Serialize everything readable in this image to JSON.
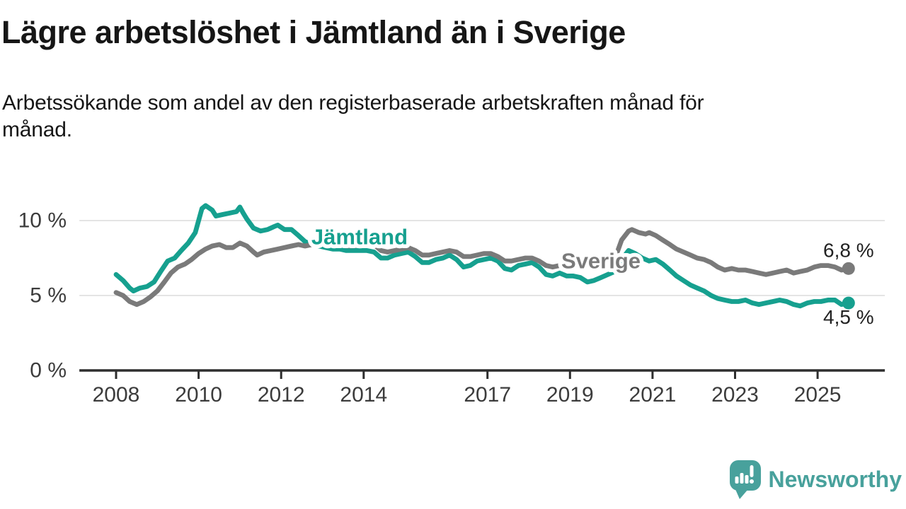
{
  "header": {
    "title": "Lägre arbetslöshet i Jämtland än i Sverige",
    "subtitle": "Arbetssökande som andel av den registerbaserade arbetskraften månad för\nmånad."
  },
  "footer": {
    "brand": "Newsworthy",
    "logo_icon": "speech-bubble-bar-chart-icon",
    "logo_color": "#48a19c"
  },
  "colors": {
    "jamtland_line": "#16a08f",
    "sverige_line": "#7a7a7a",
    "axis": "#2e2e2e",
    "axis_text": "#3c3c3c",
    "gridline": "#dcdcdc",
    "value_label_text": "#222222",
    "background": "#ffffff"
  },
  "chart_data": {
    "type": "line",
    "title": "Lägre arbetslöshet i Jämtland än i Sverige",
    "subtitle": "Arbetssökande som andel av den registerbaserade arbetskraften månad för månad.",
    "unit": "%",
    "grid": "horizontal-only",
    "xlim": [
      2007.11,
      2026.63
    ],
    "ylim": [
      0,
      11.6
    ],
    "x_ticks": [
      2008,
      2010,
      2012,
      2014,
      2017,
      2019,
      2021,
      2023,
      2025
    ],
    "y_ticks": [
      0,
      5,
      10
    ],
    "y_tick_labels": [
      "0 %",
      "5 %",
      "10 %"
    ],
    "legend": "inline-labels-on-lines",
    "annotations": [
      {
        "text": "Jämtland",
        "x": 2013.9,
        "y": 8.92,
        "color": "#16a08f"
      },
      {
        "text": "Sverige",
        "x": 2019.75,
        "y": 7.31,
        "color": "#7a7a7a"
      }
    ],
    "series": [
      {
        "name": "Jämtland",
        "color": "#16a08f",
        "end_label": "4,5 %",
        "end_label_position": "below",
        "points": [
          [
            2008.0,
            6.4
          ],
          [
            2008.17,
            6.0
          ],
          [
            2008.33,
            5.5
          ],
          [
            2008.42,
            5.3
          ],
          [
            2008.58,
            5.5
          ],
          [
            2008.75,
            5.6
          ],
          [
            2008.92,
            5.9
          ],
          [
            2009.08,
            6.6
          ],
          [
            2009.25,
            7.3
          ],
          [
            2009.42,
            7.5
          ],
          [
            2009.58,
            8.0
          ],
          [
            2009.75,
            8.5
          ],
          [
            2009.92,
            9.2
          ],
          [
            2010.0,
            10.0
          ],
          [
            2010.08,
            10.8
          ],
          [
            2010.17,
            11.0
          ],
          [
            2010.33,
            10.7
          ],
          [
            2010.42,
            10.3
          ],
          [
            2010.58,
            10.4
          ],
          [
            2010.75,
            10.5
          ],
          [
            2010.92,
            10.6
          ],
          [
            2011.0,
            10.9
          ],
          [
            2011.08,
            10.5
          ],
          [
            2011.17,
            10.1
          ],
          [
            2011.33,
            9.5
          ],
          [
            2011.5,
            9.3
          ],
          [
            2011.67,
            9.4
          ],
          [
            2011.83,
            9.6
          ],
          [
            2011.92,
            9.7
          ],
          [
            2012.08,
            9.4
          ],
          [
            2012.25,
            9.4
          ],
          [
            2012.42,
            9.0
          ],
          [
            2012.58,
            8.6
          ],
          [
            2012.75,
            8.4
          ],
          [
            2012.92,
            8.3
          ],
          [
            2013.08,
            8.2
          ],
          [
            2013.25,
            8.1
          ],
          [
            2013.42,
            8.1
          ],
          [
            2013.58,
            8.0
          ],
          [
            2013.75,
            8.0
          ],
          [
            2013.92,
            8.0
          ],
          [
            2014.08,
            8.0
          ],
          [
            2014.25,
            7.9
          ],
          [
            2014.42,
            7.5
          ],
          [
            2014.58,
            7.5
          ],
          [
            2014.75,
            7.7
          ],
          [
            2014.92,
            7.8
          ],
          [
            2015.08,
            7.9
          ],
          [
            2015.25,
            7.6
          ],
          [
            2015.42,
            7.2
          ],
          [
            2015.58,
            7.2
          ],
          [
            2015.75,
            7.4
          ],
          [
            2015.92,
            7.5
          ],
          [
            2016.08,
            7.7
          ],
          [
            2016.25,
            7.4
          ],
          [
            2016.42,
            6.9
          ],
          [
            2016.58,
            7.0
          ],
          [
            2016.75,
            7.3
          ],
          [
            2016.92,
            7.4
          ],
          [
            2017.08,
            7.5
          ],
          [
            2017.25,
            7.3
          ],
          [
            2017.42,
            6.8
          ],
          [
            2017.58,
            6.7
          ],
          [
            2017.75,
            7.0
          ],
          [
            2017.92,
            7.1
          ],
          [
            2018.08,
            7.2
          ],
          [
            2018.25,
            6.9
          ],
          [
            2018.42,
            6.4
          ],
          [
            2018.58,
            6.3
          ],
          [
            2018.75,
            6.5
          ],
          [
            2018.92,
            6.3
          ],
          [
            2019.08,
            6.3
          ],
          [
            2019.25,
            6.2
          ],
          [
            2019.42,
            5.9
          ],
          [
            2019.58,
            6.0
          ],
          [
            2019.75,
            6.2
          ],
          [
            2019.92,
            6.4
          ],
          [
            2020.08,
            6.6
          ],
          [
            2020.25,
            7.4
          ],
          [
            2020.42,
            8.0
          ],
          [
            2020.58,
            7.8
          ],
          [
            2020.75,
            7.5
          ],
          [
            2020.92,
            7.3
          ],
          [
            2021.08,
            7.4
          ],
          [
            2021.25,
            7.1
          ],
          [
            2021.42,
            6.7
          ],
          [
            2021.58,
            6.3
          ],
          [
            2021.75,
            6.0
          ],
          [
            2021.92,
            5.7
          ],
          [
            2022.08,
            5.5
          ],
          [
            2022.25,
            5.3
          ],
          [
            2022.42,
            5.0
          ],
          [
            2022.58,
            4.8
          ],
          [
            2022.75,
            4.7
          ],
          [
            2022.92,
            4.6
          ],
          [
            2023.08,
            4.6
          ],
          [
            2023.25,
            4.7
          ],
          [
            2023.42,
            4.5
          ],
          [
            2023.58,
            4.4
          ],
          [
            2023.75,
            4.5
          ],
          [
            2023.92,
            4.6
          ],
          [
            2024.08,
            4.7
          ],
          [
            2024.25,
            4.6
          ],
          [
            2024.42,
            4.4
          ],
          [
            2024.58,
            4.3
          ],
          [
            2024.75,
            4.5
          ],
          [
            2024.92,
            4.6
          ],
          [
            2025.08,
            4.6
          ],
          [
            2025.25,
            4.7
          ],
          [
            2025.42,
            4.7
          ],
          [
            2025.58,
            4.4
          ],
          [
            2025.75,
            4.5
          ]
        ]
      },
      {
        "name": "Sverige",
        "color": "#7a7a7a",
        "end_label": "6,8 %",
        "end_label_position": "above",
        "points": [
          [
            2008.0,
            5.2
          ],
          [
            2008.17,
            5.0
          ],
          [
            2008.33,
            4.6
          ],
          [
            2008.5,
            4.4
          ],
          [
            2008.67,
            4.6
          ],
          [
            2008.83,
            4.9
          ],
          [
            2009.0,
            5.3
          ],
          [
            2009.17,
            5.9
          ],
          [
            2009.33,
            6.5
          ],
          [
            2009.5,
            6.9
          ],
          [
            2009.67,
            7.1
          ],
          [
            2009.83,
            7.4
          ],
          [
            2010.0,
            7.8
          ],
          [
            2010.17,
            8.1
          ],
          [
            2010.33,
            8.3
          ],
          [
            2010.5,
            8.4
          ],
          [
            2010.67,
            8.2
          ],
          [
            2010.83,
            8.2
          ],
          [
            2011.0,
            8.5
          ],
          [
            2011.17,
            8.3
          ],
          [
            2011.33,
            7.9
          ],
          [
            2011.42,
            7.7
          ],
          [
            2011.58,
            7.9
          ],
          [
            2011.75,
            8.0
          ],
          [
            2011.92,
            8.1
          ],
          [
            2012.08,
            8.2
          ],
          [
            2012.25,
            8.3
          ],
          [
            2012.42,
            8.4
          ],
          [
            2012.58,
            8.3
          ],
          [
            2012.75,
            8.4
          ],
          [
            2012.92,
            8.5
          ],
          [
            2013.08,
            8.6
          ],
          [
            2013.25,
            8.5
          ],
          [
            2013.42,
            8.4
          ],
          [
            2013.58,
            8.3
          ],
          [
            2013.75,
            8.3
          ],
          [
            2013.92,
            8.4
          ],
          [
            2014.08,
            8.5
          ],
          [
            2014.25,
            8.4
          ],
          [
            2014.42,
            8.0
          ],
          [
            2014.58,
            7.9
          ],
          [
            2014.75,
            8.0
          ],
          [
            2014.92,
            8.1
          ],
          [
            2015.08,
            8.2
          ],
          [
            2015.25,
            8.0
          ],
          [
            2015.42,
            7.7
          ],
          [
            2015.58,
            7.7
          ],
          [
            2015.75,
            7.8
          ],
          [
            2015.92,
            7.9
          ],
          [
            2016.08,
            8.0
          ],
          [
            2016.25,
            7.9
          ],
          [
            2016.42,
            7.6
          ],
          [
            2016.58,
            7.6
          ],
          [
            2016.75,
            7.7
          ],
          [
            2016.92,
            7.8
          ],
          [
            2017.08,
            7.8
          ],
          [
            2017.25,
            7.6
          ],
          [
            2017.42,
            7.3
          ],
          [
            2017.58,
            7.3
          ],
          [
            2017.75,
            7.4
          ],
          [
            2017.92,
            7.5
          ],
          [
            2018.08,
            7.5
          ],
          [
            2018.25,
            7.3
          ],
          [
            2018.42,
            7.0
          ],
          [
            2018.58,
            6.9
          ],
          [
            2018.75,
            7.0
          ],
          [
            2018.92,
            7.1
          ],
          [
            2019.08,
            7.1
          ],
          [
            2019.25,
            7.0
          ],
          [
            2019.42,
            6.9
          ],
          [
            2019.58,
            7.0
          ],
          [
            2019.75,
            7.1
          ],
          [
            2019.92,
            7.2
          ],
          [
            2020.08,
            7.4
          ],
          [
            2020.25,
            8.7
          ],
          [
            2020.42,
            9.3
          ],
          [
            2020.5,
            9.4
          ],
          [
            2020.67,
            9.2
          ],
          [
            2020.83,
            9.1
          ],
          [
            2020.92,
            9.2
          ],
          [
            2021.08,
            9.0
          ],
          [
            2021.25,
            8.7
          ],
          [
            2021.42,
            8.4
          ],
          [
            2021.58,
            8.1
          ],
          [
            2021.75,
            7.9
          ],
          [
            2021.92,
            7.7
          ],
          [
            2022.08,
            7.5
          ],
          [
            2022.25,
            7.4
          ],
          [
            2022.42,
            7.2
          ],
          [
            2022.58,
            6.9
          ],
          [
            2022.75,
            6.7
          ],
          [
            2022.92,
            6.8
          ],
          [
            2023.08,
            6.7
          ],
          [
            2023.25,
            6.7
          ],
          [
            2023.42,
            6.6
          ],
          [
            2023.58,
            6.5
          ],
          [
            2023.75,
            6.4
          ],
          [
            2023.92,
            6.5
          ],
          [
            2024.08,
            6.6
          ],
          [
            2024.25,
            6.7
          ],
          [
            2024.42,
            6.5
          ],
          [
            2024.58,
            6.6
          ],
          [
            2024.75,
            6.7
          ],
          [
            2024.92,
            6.9
          ],
          [
            2025.08,
            7.0
          ],
          [
            2025.25,
            7.0
          ],
          [
            2025.42,
            6.9
          ],
          [
            2025.58,
            6.7
          ],
          [
            2025.75,
            6.8
          ]
        ]
      }
    ]
  }
}
